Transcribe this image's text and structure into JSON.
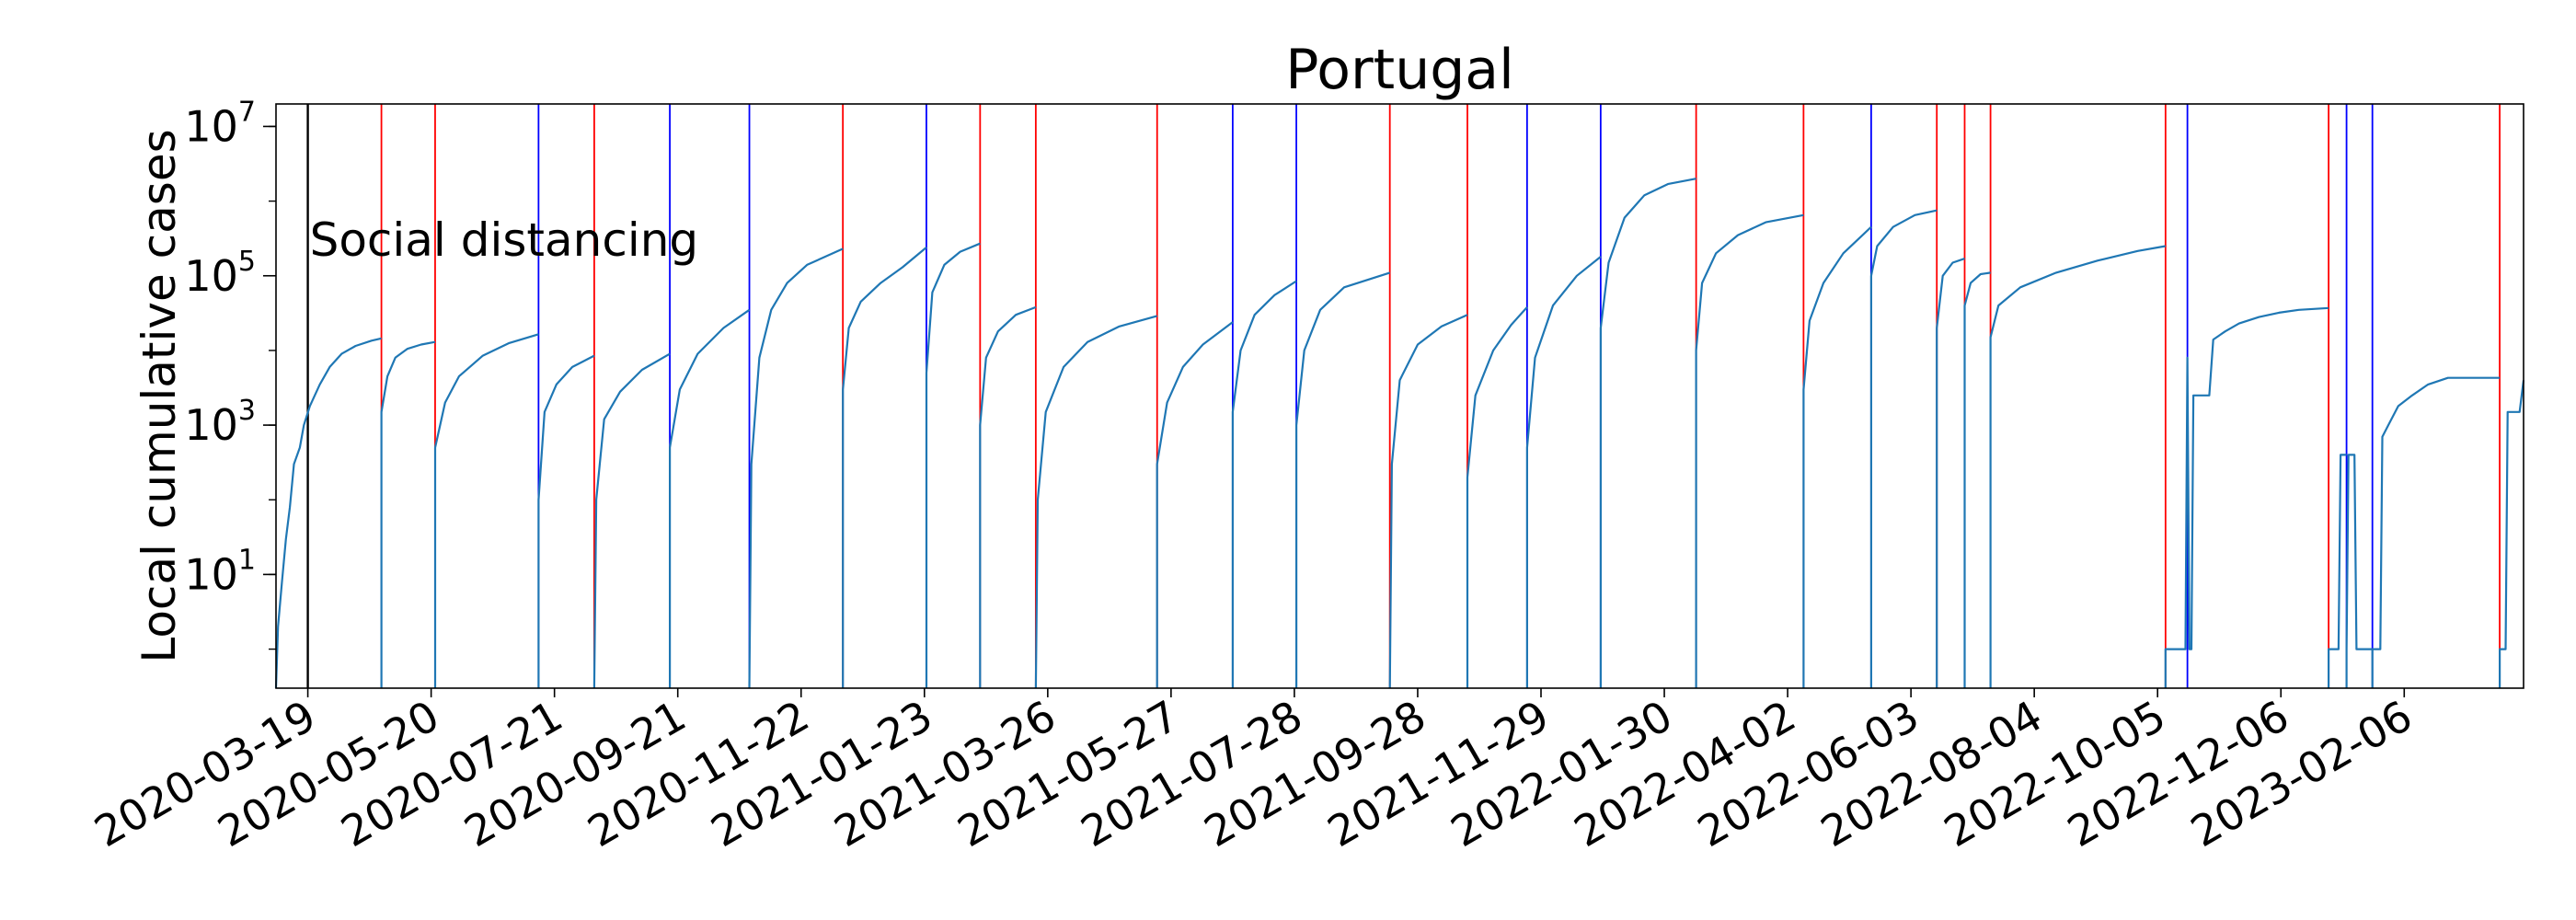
{
  "chart_data": {
    "type": "line",
    "title": "Portugal",
    "ylabel": "Local cumulative cases",
    "xlabel": "",
    "yscale": "log",
    "ylim": [
      0.3,
      20000000
    ],
    "xlim": [
      "2020-03-03",
      "2023-04-07"
    ],
    "y_ticks": [
      {
        "base": "10",
        "exp": "1",
        "value": 10
      },
      {
        "base": "10",
        "exp": "3",
        "value": 1000
      },
      {
        "base": "10",
        "exp": "5",
        "value": 100000
      },
      {
        "base": "10",
        "exp": "7",
        "value": 10000000
      }
    ],
    "x_ticks": [
      "2020-03-19",
      "2020-05-20",
      "2020-07-21",
      "2020-09-21",
      "2020-11-22",
      "2021-01-23",
      "2021-03-26",
      "2021-05-27",
      "2021-07-28",
      "2021-09-28",
      "2021-11-29",
      "2022-01-30",
      "2022-04-02",
      "2022-06-03",
      "2022-08-04",
      "2022-10-05",
      "2022-12-06",
      "2023-02-06"
    ],
    "annotation": {
      "text": "Social distancing",
      "date": "2020-03-19"
    },
    "colors": {
      "series": "#1f77b4",
      "red_marker": "#ff0000",
      "blue_marker": "#0000ff",
      "black_marker": "#000000"
    },
    "markers": [
      {
        "date": "2020-03-19",
        "color": "black"
      },
      {
        "date": "2020-04-25",
        "color": "red"
      },
      {
        "date": "2020-05-22",
        "color": "red"
      },
      {
        "date": "2020-07-13",
        "color": "blue"
      },
      {
        "date": "2020-08-10",
        "color": "red"
      },
      {
        "date": "2020-09-17",
        "color": "blue"
      },
      {
        "date": "2020-10-27",
        "color": "blue"
      },
      {
        "date": "2020-12-13",
        "color": "red"
      },
      {
        "date": "2021-01-24",
        "color": "blue"
      },
      {
        "date": "2021-02-20",
        "color": "red"
      },
      {
        "date": "2021-03-20",
        "color": "red"
      },
      {
        "date": "2021-05-20",
        "color": "red"
      },
      {
        "date": "2021-06-27",
        "color": "blue"
      },
      {
        "date": "2021-07-29",
        "color": "blue"
      },
      {
        "date": "2021-09-14",
        "color": "red"
      },
      {
        "date": "2021-10-23",
        "color": "red"
      },
      {
        "date": "2021-11-22",
        "color": "blue"
      },
      {
        "date": "2021-12-29",
        "color": "blue"
      },
      {
        "date": "2022-02-15",
        "color": "red"
      },
      {
        "date": "2022-04-10",
        "color": "red"
      },
      {
        "date": "2022-05-14",
        "color": "blue"
      },
      {
        "date": "2022-06-16",
        "color": "red"
      },
      {
        "date": "2022-06-30",
        "color": "red"
      },
      {
        "date": "2022-07-13",
        "color": "red"
      },
      {
        "date": "2022-10-09",
        "color": "red"
      },
      {
        "date": "2022-10-20",
        "color": "blue"
      },
      {
        "date": "2022-12-30",
        "color": "red"
      },
      {
        "date": "2023-01-08",
        "color": "blue"
      },
      {
        "date": "2023-01-21",
        "color": "blue"
      },
      {
        "date": "2023-03-26",
        "color": "red"
      }
    ],
    "segments": [
      {
        "points": [
          [
            "2020-03-03",
            0.3
          ],
          [
            "2020-03-04",
            2
          ],
          [
            "2020-03-06",
            8
          ],
          [
            "2020-03-08",
            30
          ],
          [
            "2020-03-10",
            80
          ],
          [
            "2020-03-12",
            300
          ],
          [
            "2020-03-15",
            500
          ],
          [
            "2020-03-17",
            1000
          ],
          [
            "2020-03-20",
            1800
          ],
          [
            "2020-03-25",
            3500
          ],
          [
            "2020-03-30",
            6000
          ],
          [
            "2020-04-05",
            9000
          ],
          [
            "2020-04-12",
            11500
          ],
          [
            "2020-04-20",
            13500
          ],
          [
            "2020-04-25",
            14500
          ]
        ]
      },
      {
        "points": [
          [
            "2020-04-25",
            0.3
          ],
          [
            "2020-04-25",
            1500
          ],
          [
            "2020-04-28",
            4500
          ],
          [
            "2020-05-02",
            8000
          ],
          [
            "2020-05-08",
            10500
          ],
          [
            "2020-05-15",
            12000
          ],
          [
            "2020-05-22",
            13000
          ]
        ]
      },
      {
        "points": [
          [
            "2020-05-22",
            0.3
          ],
          [
            "2020-05-22",
            500
          ],
          [
            "2020-05-27",
            2000
          ],
          [
            "2020-06-03",
            4500
          ],
          [
            "2020-06-15",
            8500
          ],
          [
            "2020-06-28",
            12500
          ],
          [
            "2020-07-13",
            16500
          ]
        ]
      },
      {
        "points": [
          [
            "2020-07-13",
            0.3
          ],
          [
            "2020-07-13",
            100
          ],
          [
            "2020-07-16",
            1500
          ],
          [
            "2020-07-22",
            3500
          ],
          [
            "2020-07-30",
            6000
          ],
          [
            "2020-08-10",
            8500
          ]
        ]
      },
      {
        "points": [
          [
            "2020-08-10",
            0.3
          ],
          [
            "2020-08-11",
            100
          ],
          [
            "2020-08-15",
            1200
          ],
          [
            "2020-08-23",
            2800
          ],
          [
            "2020-09-03",
            5500
          ],
          [
            "2020-09-17",
            9000
          ]
        ]
      },
      {
        "points": [
          [
            "2020-09-17",
            0.3
          ],
          [
            "2020-09-17",
            500
          ],
          [
            "2020-09-22",
            3000
          ],
          [
            "2020-10-01",
            9000
          ],
          [
            "2020-10-14",
            20000
          ],
          [
            "2020-10-27",
            35000
          ]
        ]
      },
      {
        "points": [
          [
            "2020-10-27",
            0.3
          ],
          [
            "2020-10-28",
            300
          ],
          [
            "2020-11-01",
            8000
          ],
          [
            "2020-11-07",
            35000
          ],
          [
            "2020-11-15",
            80000
          ],
          [
            "2020-11-25",
            140000
          ],
          [
            "2020-12-13",
            230000
          ]
        ]
      },
      {
        "points": [
          [
            "2020-12-13",
            0.3
          ],
          [
            "2020-12-13",
            3000
          ],
          [
            "2020-12-16",
            20000
          ],
          [
            "2020-12-22",
            45000
          ],
          [
            "2021-01-01",
            80000
          ],
          [
            "2021-01-12",
            130000
          ],
          [
            "2021-01-24",
            240000
          ]
        ]
      },
      {
        "points": [
          [
            "2021-01-24",
            0.3
          ],
          [
            "2021-01-24",
            5000
          ],
          [
            "2021-01-27",
            60000
          ],
          [
            "2021-02-02",
            140000
          ],
          [
            "2021-02-10",
            210000
          ],
          [
            "2021-02-20",
            270000
          ]
        ]
      },
      {
        "points": [
          [
            "2021-02-20",
            0.3
          ],
          [
            "2021-02-20",
            1000
          ],
          [
            "2021-02-23",
            8000
          ],
          [
            "2021-03-01",
            18000
          ],
          [
            "2021-03-10",
            30000
          ],
          [
            "2021-03-20",
            38000
          ]
        ]
      },
      {
        "points": [
          [
            "2021-03-20",
            0.3
          ],
          [
            "2021-03-21",
            100
          ],
          [
            "2021-03-25",
            1500
          ],
          [
            "2021-04-03",
            6000
          ],
          [
            "2021-04-15",
            13000
          ],
          [
            "2021-05-01",
            21000
          ],
          [
            "2021-05-20",
            29000
          ]
        ]
      },
      {
        "points": [
          [
            "2021-05-20",
            0.3
          ],
          [
            "2021-05-20",
            300
          ],
          [
            "2021-05-25",
            2000
          ],
          [
            "2021-06-02",
            6000
          ],
          [
            "2021-06-12",
            12000
          ],
          [
            "2021-06-27",
            24000
          ]
        ]
      },
      {
        "points": [
          [
            "2021-06-27",
            0.3
          ],
          [
            "2021-06-27",
            1500
          ],
          [
            "2021-07-01",
            10000
          ],
          [
            "2021-07-08",
            30000
          ],
          [
            "2021-07-18",
            55000
          ],
          [
            "2021-07-29",
            85000
          ]
        ]
      },
      {
        "points": [
          [
            "2021-07-29",
            0.3
          ],
          [
            "2021-07-29",
            1000
          ],
          [
            "2021-08-02",
            10000
          ],
          [
            "2021-08-10",
            35000
          ],
          [
            "2021-08-22",
            70000
          ],
          [
            "2021-09-14",
            110000
          ]
        ]
      },
      {
        "points": [
          [
            "2021-09-14",
            0.3
          ],
          [
            "2021-09-15",
            300
          ],
          [
            "2021-09-19",
            4000
          ],
          [
            "2021-09-28",
            12000
          ],
          [
            "2021-10-10",
            21000
          ],
          [
            "2021-10-23",
            30000
          ]
        ]
      },
      {
        "points": [
          [
            "2021-10-23",
            0.3
          ],
          [
            "2021-10-23",
            200
          ],
          [
            "2021-10-27",
            2500
          ],
          [
            "2021-11-05",
            10000
          ],
          [
            "2021-11-14",
            22000
          ],
          [
            "2021-11-22",
            38000
          ]
        ]
      },
      {
        "points": [
          [
            "2021-11-22",
            0.3
          ],
          [
            "2021-11-22",
            500
          ],
          [
            "2021-11-26",
            8000
          ],
          [
            "2021-12-05",
            40000
          ],
          [
            "2021-12-17",
            100000
          ],
          [
            "2021-12-29",
            180000
          ]
        ]
      },
      {
        "points": [
          [
            "2021-12-29",
            0.3
          ],
          [
            "2021-12-29",
            20000
          ],
          [
            "2022-01-02",
            150000
          ],
          [
            "2022-01-10",
            600000
          ],
          [
            "2022-01-20",
            1200000
          ],
          [
            "2022-02-01",
            1700000
          ],
          [
            "2022-02-15",
            2000000
          ]
        ]
      },
      {
        "points": [
          [
            "2022-02-15",
            0.3
          ],
          [
            "2022-02-15",
            10000
          ],
          [
            "2022-02-18",
            80000
          ],
          [
            "2022-02-25",
            200000
          ],
          [
            "2022-03-08",
            350000
          ],
          [
            "2022-03-22",
            520000
          ],
          [
            "2022-04-10",
            650000
          ]
        ]
      },
      {
        "points": [
          [
            "2022-04-10",
            0.3
          ],
          [
            "2022-04-10",
            3000
          ],
          [
            "2022-04-13",
            25000
          ],
          [
            "2022-04-20",
            80000
          ],
          [
            "2022-04-30",
            200000
          ],
          [
            "2022-05-14",
            450000
          ]
        ]
      },
      {
        "points": [
          [
            "2022-05-14",
            0.3
          ],
          [
            "2022-05-14",
            100000
          ],
          [
            "2022-05-17",
            250000
          ],
          [
            "2022-05-25",
            450000
          ],
          [
            "2022-06-05",
            650000
          ],
          [
            "2022-06-16",
            750000
          ]
        ]
      },
      {
        "points": [
          [
            "2022-06-16",
            0.3
          ],
          [
            "2022-06-16",
            20000
          ],
          [
            "2022-06-19",
            100000
          ],
          [
            "2022-06-24",
            150000
          ],
          [
            "2022-06-30",
            170000
          ]
        ]
      },
      {
        "points": [
          [
            "2022-06-30",
            0.3
          ],
          [
            "2022-06-30",
            40000
          ],
          [
            "2022-07-03",
            80000
          ],
          [
            "2022-07-08",
            105000
          ],
          [
            "2022-07-13",
            110000
          ]
        ]
      },
      {
        "points": [
          [
            "2022-07-13",
            0.3
          ],
          [
            "2022-07-13",
            15000
          ],
          [
            "2022-07-17",
            40000
          ],
          [
            "2022-07-28",
            70000
          ],
          [
            "2022-08-15",
            110000
          ],
          [
            "2022-09-05",
            160000
          ],
          [
            "2022-09-25",
            215000
          ],
          [
            "2022-10-09",
            250000
          ]
        ]
      },
      {
        "points": [
          [
            "2022-10-09",
            0.3
          ],
          [
            "2022-10-09",
            1
          ],
          [
            "2022-10-19",
            1
          ],
          [
            "2022-10-20",
            8000
          ],
          [
            "2022-10-21",
            1
          ],
          [
            "2022-10-22",
            1
          ],
          [
            "2022-10-23",
            2500
          ],
          [
            "2022-10-31",
            2500
          ],
          [
            "2022-11-02",
            14000
          ],
          [
            "2022-11-08",
            18000
          ],
          [
            "2022-11-15",
            23000
          ],
          [
            "2022-11-25",
            28000
          ],
          [
            "2022-12-05",
            32000
          ],
          [
            "2022-12-15",
            35000
          ],
          [
            "2022-12-30",
            37000
          ]
        ]
      },
      {
        "points": [
          [
            "2022-12-30",
            0.3
          ],
          [
            "2022-12-30",
            1
          ],
          [
            "2023-01-04",
            1
          ],
          [
            "2023-01-05",
            400
          ],
          [
            "2023-01-08",
            400
          ]
        ]
      },
      {
        "points": [
          [
            "2023-01-08",
            0.3
          ],
          [
            "2023-01-08",
            1
          ],
          [
            "2023-01-09",
            400
          ],
          [
            "2023-01-12",
            400
          ],
          [
            "2023-01-13",
            1
          ],
          [
            "2023-01-21",
            1
          ]
        ]
      },
      {
        "points": [
          [
            "2023-01-21",
            0.3
          ],
          [
            "2023-01-21",
            1
          ],
          [
            "2023-01-25",
            1
          ],
          [
            "2023-01-26",
            700
          ],
          [
            "2023-01-29",
            1000
          ],
          [
            "2023-02-03",
            1800
          ],
          [
            "2023-02-10",
            2500
          ],
          [
            "2023-02-18",
            3500
          ],
          [
            "2023-02-28",
            4300
          ],
          [
            "2023-03-26",
            4300
          ]
        ]
      },
      {
        "points": [
          [
            "2023-03-26",
            0.3
          ],
          [
            "2023-03-26",
            1
          ],
          [
            "2023-03-29",
            1
          ],
          [
            "2023-03-30",
            1500
          ],
          [
            "2023-04-05",
            1500
          ],
          [
            "2023-04-07",
            4000
          ]
        ]
      }
    ]
  }
}
